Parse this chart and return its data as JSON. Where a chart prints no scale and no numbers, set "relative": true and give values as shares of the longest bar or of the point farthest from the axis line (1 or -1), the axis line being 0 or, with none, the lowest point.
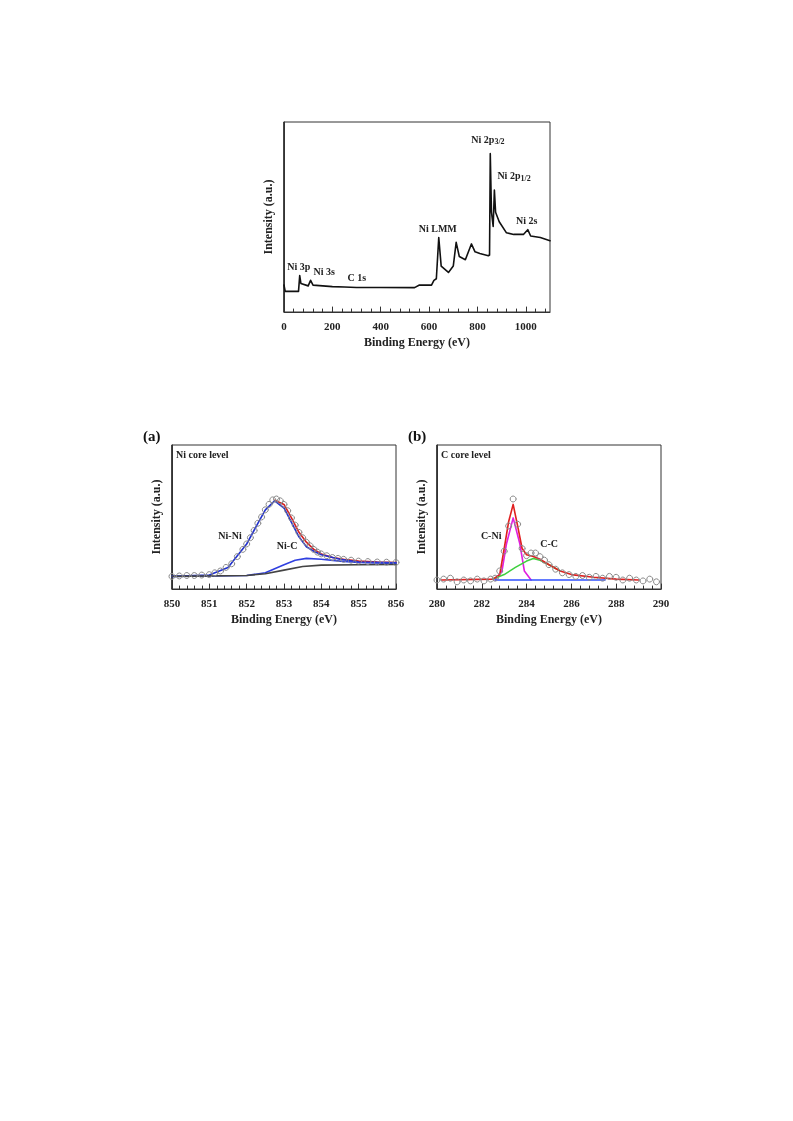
{
  "chart_data": [
    {
      "type": "line",
      "xlabel": "Binding Energy (eV)",
      "ylabel": "Intensity (a.u.)",
      "relative": true,
      "xlim": [
        0,
        1100
      ],
      "xticks": [
        0,
        200,
        400,
        600,
        800,
        1000
      ],
      "grid": false,
      "marker": "none",
      "line_style": "solid",
      "tick_labels": "x",
      "series": [
        {
          "color": "#111111",
          "x": [
            0,
            5,
            60,
            65,
            70,
            100,
            110,
            120,
            200,
            250,
            300,
            400,
            540,
            560,
            610,
            620,
            630,
            640,
            650,
            680,
            700,
            712,
            725,
            750,
            775,
            790,
            810,
            845,
            850,
            853,
            858,
            865,
            870,
            875,
            890,
            920,
            950,
            990,
            1008,
            1020,
            1060,
            1100
          ],
          "values": [
            0.17,
            0.13,
            0.13,
            0.23,
            0.18,
            0.165,
            0.2,
            0.17,
            0.16,
            0.158,
            0.155,
            0.155,
            0.154,
            0.17,
            0.17,
            0.2,
            0.21,
            0.47,
            0.29,
            0.25,
            0.29,
            0.44,
            0.35,
            0.33,
            0.43,
            0.38,
            0.37,
            0.355,
            0.36,
            1.0,
            0.63,
            0.54,
            0.77,
            0.63,
            0.57,
            0.5,
            0.49,
            0.49,
            0.52,
            0.48,
            0.47,
            0.45
          ]
        }
      ],
      "annotations": [
        {
          "text": "Ni 3p",
          "x": 65,
          "y": 0.23
        },
        {
          "text": "Ni 3s",
          "x": 110,
          "y": 0.2
        },
        {
          "text": "C 1s",
          "x": 250,
          "y": 0.158
        },
        {
          "text": "Ni LMM",
          "x": 640,
          "y": 0.47
        },
        {
          "text": "Ni 2p$_{3/2}$",
          "x": 853,
          "y": 1.0
        },
        {
          "text": "Ni 2p$_{1/2}$",
          "x": 870,
          "y": 0.77
        },
        {
          "text": "Ni 2s",
          "x": 1008,
          "y": 0.52
        }
      ]
    },
    {
      "type": "line",
      "title": "(a)",
      "xlabel": "Binding Energy (eV)",
      "ylabel": "Intensity (a.u.)",
      "relative": true,
      "xlim": [
        850,
        856
      ],
      "xticks": [
        850,
        851,
        852,
        853,
        854,
        855,
        856
      ],
      "grid": false,
      "line_style": "solid",
      "tick_labels": "x",
      "series": [
        {
          "type": "scatter",
          "marker": "circle",
          "color": "#8a8a8a",
          "x": [
            850,
            850.2,
            850.4,
            850.6,
            850.8,
            851,
            851.15,
            851.3,
            851.45,
            851.6,
            851.75,
            851.9,
            852.0,
            852.1,
            852.2,
            852.3,
            852.4,
            852.5,
            852.6,
            852.7,
            852.8,
            852.9,
            853.0,
            853.1,
            853.2,
            853.3,
            853.4,
            853.5,
            853.6,
            853.7,
            853.8,
            853.9,
            854.0,
            854.15,
            854.3,
            854.45,
            854.6,
            854.8,
            855,
            855.25,
            855.5,
            855.75,
            856
          ],
          "values": [
            0.14,
            0.145,
            0.15,
            0.15,
            0.155,
            0.16,
            0.18,
            0.2,
            0.24,
            0.28,
            0.36,
            0.44,
            0.5,
            0.57,
            0.65,
            0.73,
            0.8,
            0.88,
            0.94,
            0.99,
            1.0,
            0.98,
            0.94,
            0.87,
            0.79,
            0.71,
            0.63,
            0.57,
            0.52,
            0.48,
            0.44,
            0.41,
            0.39,
            0.37,
            0.35,
            0.34,
            0.33,
            0.32,
            0.31,
            0.305,
            0.3,
            0.298,
            0.295
          ]
        },
        {
          "marker": "none",
          "color": "#d62020",
          "x": [
            852.75,
            853,
            853.2,
            853.4,
            853.6,
            853.8,
            854,
            854.3,
            854.6,
            855,
            855.5,
            856
          ],
          "values": [
            0.985,
            0.94,
            0.79,
            0.63,
            0.52,
            0.44,
            0.39,
            0.35,
            0.33,
            0.31,
            0.3,
            0.295
          ]
        },
        {
          "marker": "none",
          "color": "#2030d0",
          "x": [
            850,
            851,
            851.5,
            852,
            852.3,
            852.5,
            852.75,
            853,
            853.2,
            853.4,
            853.6,
            853.8,
            854,
            854.5,
            855,
            856
          ],
          "values": [
            0.14,
            0.155,
            0.24,
            0.5,
            0.73,
            0.88,
            0.98,
            0.9,
            0.74,
            0.58,
            0.47,
            0.42,
            0.38,
            0.33,
            0.3,
            0.29
          ]
        },
        {
          "marker": "none",
          "color": "#3040e0",
          "x": [
            850,
            852,
            852.5,
            853,
            853.3,
            853.6,
            854,
            854.5,
            855,
            856
          ],
          "values": [
            0.14,
            0.15,
            0.18,
            0.27,
            0.32,
            0.34,
            0.33,
            0.31,
            0.295,
            0.285
          ]
        },
        {
          "marker": "none",
          "color": "#444444",
          "x": [
            850,
            852,
            852.5,
            853,
            853.5,
            854,
            855,
            856
          ],
          "values": [
            0.14,
            0.15,
            0.17,
            0.21,
            0.25,
            0.265,
            0.27,
            0.272
          ]
        }
      ],
      "annotations": [
        "Ni core level",
        {
          "text": "Ni-Ni",
          "x": 852,
          "y": 0.5
        },
        {
          "text": "Ni-C",
          "x": 853.6,
          "y": 0.34
        }
      ]
    },
    {
      "type": "line",
      "title": "(b)",
      "xlabel": "Binding Energy (eV)",
      "ylabel": "Intensity (a.u.)",
      "relative": true,
      "xlim": [
        280,
        290
      ],
      "xticks": [
        280,
        282,
        284,
        286,
        288,
        290
      ],
      "grid": false,
      "line_style": "solid",
      "tick_labels": "x",
      "series": [
        {
          "type": "scatter",
          "marker": "circle",
          "color": "#8a8a8a",
          "x": [
            280.0,
            280.3,
            280.6,
            280.9,
            281.2,
            281.5,
            281.8,
            282.1,
            282.4,
            282.6,
            282.8,
            283.0,
            283.2,
            283.4,
            283.6,
            283.8,
            284.0,
            284.2,
            284.4,
            284.6,
            284.8,
            285.0,
            285.3,
            285.6,
            285.9,
            286.2,
            286.5,
            286.8,
            287.1,
            287.4,
            287.7,
            288.0,
            288.3,
            288.6,
            288.9,
            289.2,
            289.5,
            289.8
          ],
          "values": [
            0.1,
            0.11,
            0.12,
            0.08,
            0.1,
            0.09,
            0.11,
            0.09,
            0.11,
            0.12,
            0.2,
            0.42,
            0.7,
            1.0,
            0.72,
            0.45,
            0.37,
            0.4,
            0.4,
            0.36,
            0.32,
            0.27,
            0.22,
            0.18,
            0.16,
            0.14,
            0.15,
            0.13,
            0.14,
            0.12,
            0.14,
            0.13,
            0.1,
            0.12,
            0.1,
            0.09,
            0.11,
            0.08
          ]
        },
        {
          "marker": "none",
          "color": "#e020e0",
          "x": [
            282.6,
            282.9,
            283.1,
            283.4,
            283.7,
            283.9,
            284.2
          ],
          "values": [
            0.1,
            0.2,
            0.5,
            0.79,
            0.5,
            0.2,
            0.1
          ]
        },
        {
          "marker": "none",
          "color": "#3050ff",
          "x": [
            282.6,
            287.5
          ],
          "values": [
            0.1,
            0.1
          ]
        },
        {
          "marker": "none",
          "color": "#40d040",
          "x": [
            282.5,
            283,
            283.5,
            284,
            284.3,
            284.6,
            285,
            285.5
          ],
          "values": [
            0.11,
            0.16,
            0.24,
            0.31,
            0.34,
            0.32,
            0.27,
            0.2
          ]
        },
        {
          "marker": "none",
          "color": "#e02020",
          "x": [
            280.2,
            282.5,
            282.8,
            283,
            283.2,
            283.4,
            283.6,
            283.8,
            284,
            284.3,
            284.6,
            285,
            285.5,
            286,
            287,
            288,
            289
          ],
          "values": [
            0.1,
            0.11,
            0.16,
            0.45,
            0.75,
            0.94,
            0.7,
            0.45,
            0.38,
            0.36,
            0.33,
            0.27,
            0.2,
            0.16,
            0.13,
            0.11,
            0.1
          ]
        }
      ],
      "annotations": [
        "C core level",
        {
          "text": "C-Ni",
          "x": 283.1,
          "y": 0.5
        },
        {
          "text": "C-C",
          "x": 284.3,
          "y": 0.36
        }
      ]
    }
  ]
}
